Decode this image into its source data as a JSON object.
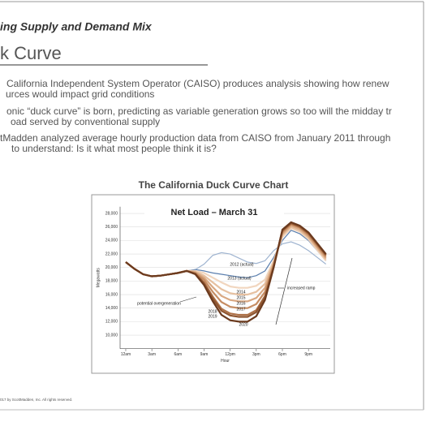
{
  "header": {
    "section": "ing Supply and Demand Mix",
    "title": "k Curve"
  },
  "bullets": [
    [
      "California Independent System Operator (CAISO) produces analysis showing how renew",
      "urces would impact grid conditions"
    ],
    [
      "onic “duck curve” is born, predicting as variable generation grows so too will the midday tr",
      "oad served by conventional supply"
    ],
    [
      "tMadden analyzed average hourly production data from CAISO from January 2011 through",
      "to understand: Is it what most people think it is?"
    ]
  ],
  "footer": "017 by ScottMadden, Inc. All rights reserved.",
  "chart_data": {
    "type": "line",
    "title": "The California Duck Curve Chart",
    "subtitle": "Net Load – March 31",
    "x_label": "Hour",
    "y_label": "Megawatts",
    "x": [
      0,
      1,
      2,
      3,
      4,
      5,
      6,
      7,
      8,
      9,
      10,
      11,
      12,
      13,
      14,
      15,
      16,
      17,
      18,
      19,
      20,
      21,
      22,
      23
    ],
    "xlim": [
      -0.65,
      23.5
    ],
    "xticks": [
      {
        "value": 0,
        "label": "12am"
      },
      {
        "value": 3,
        "label": "3am"
      },
      {
        "value": 6,
        "label": "6am"
      },
      {
        "value": 9,
        "label": "9am"
      },
      {
        "value": 12,
        "label": "12pm"
      },
      {
        "value": 15,
        "label": "3pm"
      },
      {
        "value": 18,
        "label": "6pm"
      },
      {
        "value": 21,
        "label": "9pm"
      }
    ],
    "ylim": [
      8000,
      29000
    ],
    "yticks": [
      {
        "value": 10000,
        "label": "10,000"
      },
      {
        "value": 12000,
        "label": "12,000"
      },
      {
        "value": 14000,
        "label": "14,000"
      },
      {
        "value": 16000,
        "label": "16,000"
      },
      {
        "value": 18000,
        "label": "18,000"
      },
      {
        "value": 20000,
        "label": "20,000"
      },
      {
        "value": 22000,
        "label": "22,000"
      },
      {
        "value": 24000,
        "label": "24,000"
      },
      {
        "value": 26000,
        "label": "26,000"
      },
      {
        "value": 28000,
        "label": "28,000"
      }
    ],
    "grid": true,
    "annotations": [
      "increased ramp",
      "potential overgeneration"
    ],
    "series": [
      {
        "name": "2012 (actual)",
        "color": "#9fb4d0",
        "values": [
          20800,
          19800,
          19000,
          18700,
          18800,
          19000,
          19200,
          19500,
          19700,
          20500,
          21800,
          22200,
          22000,
          21400,
          20800,
          20600,
          21000,
          22500,
          23500,
          23800,
          23300,
          22500,
          21500,
          20500
        ]
      },
      {
        "name": "2013 (actual)",
        "color": "#5b7fae",
        "values": [
          20800,
          19800,
          19000,
          18700,
          18800,
          19000,
          19200,
          19500,
          19700,
          19500,
          19200,
          19000,
          18800,
          18600,
          18500,
          18800,
          19500,
          21500,
          24000,
          25500,
          25000,
          24000,
          22500,
          21000
        ]
      },
      {
        "name": "2014",
        "color": "#f1d6bf",
        "values": [
          20800,
          19800,
          19000,
          18700,
          18800,
          19000,
          19200,
          19500,
          19500,
          19200,
          18500,
          17800,
          17200,
          17000,
          17000,
          17300,
          18200,
          21000,
          24500,
          25800,
          25300,
          24200,
          22600,
          21000
        ]
      },
      {
        "name": "2015",
        "color": "#e6c0a0",
        "values": [
          20800,
          19800,
          19000,
          18700,
          18800,
          19000,
          19200,
          19500,
          19400,
          18800,
          17800,
          16800,
          16200,
          16000,
          16000,
          16400,
          17600,
          20800,
          24800,
          26000,
          25500,
          24400,
          22800,
          21200
        ]
      },
      {
        "name": "2016",
        "color": "#d9a882",
        "values": [
          20800,
          19800,
          19000,
          18700,
          18800,
          19000,
          19200,
          19500,
          19300,
          18500,
          17100,
          15800,
          15200,
          15000,
          15000,
          15500,
          17000,
          20600,
          25000,
          26200,
          25700,
          24600,
          23000,
          21400
        ]
      },
      {
        "name": "2017",
        "color": "#c68d63",
        "values": [
          20800,
          19800,
          19000,
          18700,
          18800,
          19000,
          19200,
          19500,
          19200,
          18200,
          16400,
          14900,
          14200,
          14000,
          14000,
          14600,
          16400,
          20400,
          25200,
          26400,
          25900,
          24800,
          23200,
          21600
        ]
      },
      {
        "name": "2018",
        "color": "#ad7047",
        "values": [
          20800,
          19800,
          19000,
          18700,
          18800,
          19000,
          19200,
          19500,
          19100,
          17800,
          15700,
          13900,
          13200,
          13000,
          13000,
          13700,
          15800,
          20200,
          25400,
          26500,
          26000,
          25000,
          23400,
          21800
        ]
      },
      {
        "name": "2019",
        "color": "#8e5530",
        "values": [
          20800,
          19800,
          19000,
          18700,
          18800,
          19000,
          19200,
          19500,
          19050,
          17600,
          15400,
          13600,
          12900,
          12700,
          12700,
          13400,
          15600,
          20100,
          25500,
          26600,
          26100,
          25100,
          23500,
          21900
        ]
      },
      {
        "name": "2020",
        "color": "#6b3a1e",
        "values": [
          20800,
          19800,
          19000,
          18700,
          18800,
          19000,
          19200,
          19500,
          19000,
          17400,
          15000,
          13000,
          12200,
          12000,
          12000,
          12800,
          15200,
          20000,
          25600,
          26700,
          26200,
          25200,
          23600,
          22000
        ]
      }
    ]
  }
}
